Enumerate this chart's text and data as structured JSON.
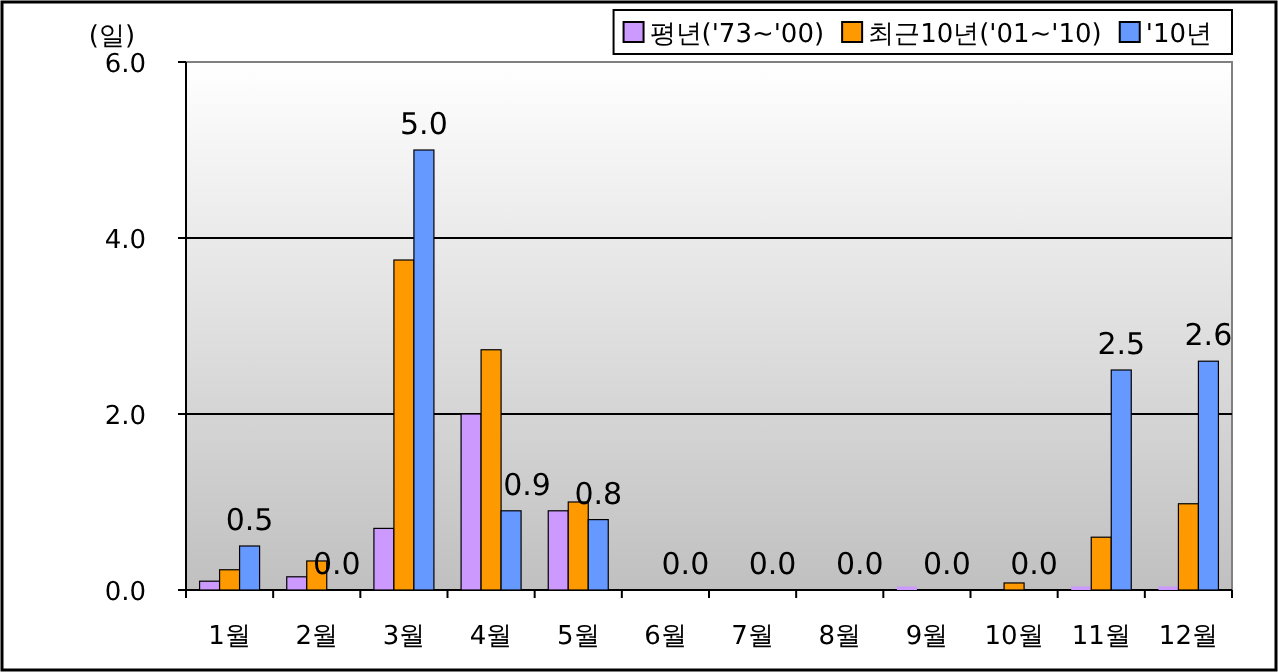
{
  "chart_data": {
    "type": "bar",
    "ylabel": "(일)",
    "categories": [
      "1월",
      "2월",
      "3월",
      "4월",
      "5월",
      "6월",
      "7월",
      "8월",
      "9월",
      "10월",
      "11월",
      "12월"
    ],
    "series": [
      {
        "name": "평년('73~'00)",
        "color": "#cc99ff",
        "values": [
          0.1,
          0.15,
          0.7,
          2.0,
          0.9,
          0,
          0,
          0,
          0.04,
          0,
          0.04,
          0.04
        ]
      },
      {
        "name": "최근10년('01~'10)",
        "color": "#ff9900",
        "values": [
          0.23,
          0.33,
          3.75,
          2.73,
          1.0,
          0,
          0,
          0,
          0,
          0.08,
          0.6,
          0.98
        ]
      },
      {
        "name": "'10년",
        "color": "#6699ff",
        "values": [
          0.5,
          0.0,
          5.0,
          0.9,
          0.8,
          0.0,
          0.0,
          0.0,
          0.0,
          0.0,
          2.5,
          2.6
        ],
        "value_labels": [
          "0.5",
          "0.0",
          "5.0",
          "0.9",
          "0.8",
          "0.0",
          "0.0",
          "0.0",
          "0.0",
          "0.0",
          "2.5",
          "2.6"
        ]
      }
    ],
    "ylim": [
      0,
      6
    ],
    "yticks": [
      {
        "value": 0,
        "label": "0.0"
      },
      {
        "value": 2,
        "label": "2.0"
      },
      {
        "value": 4,
        "label": "4.0"
      },
      {
        "value": 6,
        "label": "6.0"
      }
    ],
    "grid": "y",
    "legend": "top right"
  }
}
